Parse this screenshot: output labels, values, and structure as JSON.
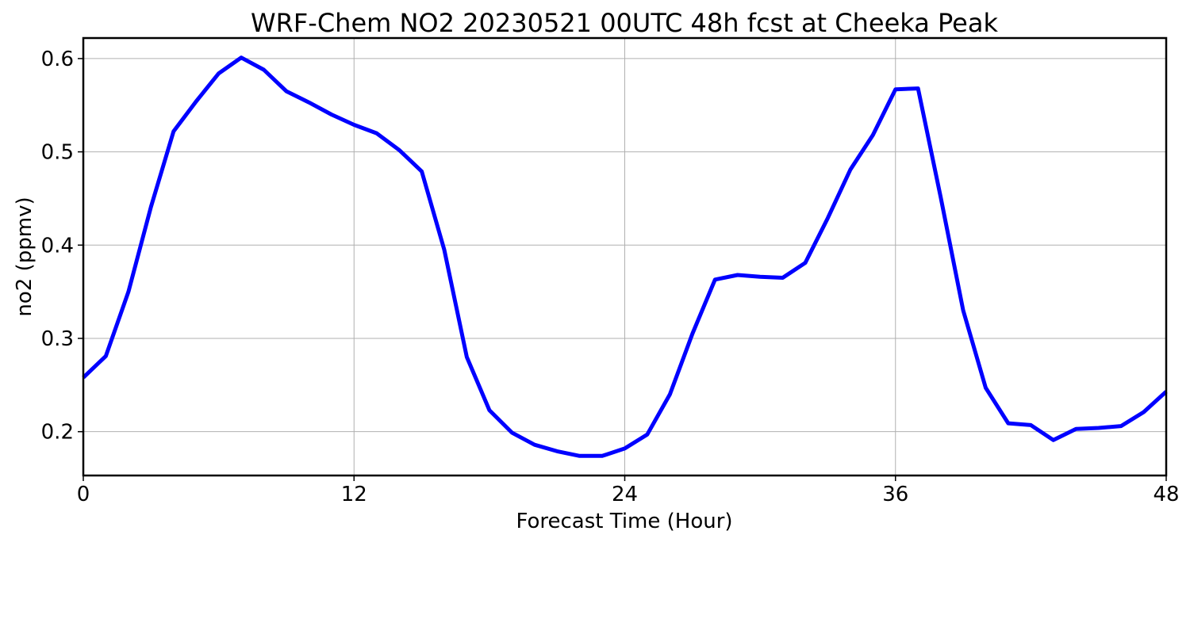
{
  "chart_data": {
    "type": "line",
    "title": "WRF-Chem NO2  20230521 00UTC 48h fcst at Cheeka Peak",
    "xlabel": "Forecast Time (Hour)",
    "ylabel": "no2  (ppmv)",
    "xlim": [
      0,
      48
    ],
    "ylim": [
      0.153,
      0.622
    ],
    "xticks": [
      0,
      12,
      24,
      36,
      48
    ],
    "yticks": [
      0.2,
      0.3,
      0.4,
      0.5,
      0.6
    ],
    "ytick_labels": [
      "0.2",
      "0.3",
      "0.4",
      "0.5",
      "0.6"
    ],
    "grid": true,
    "series_color": "#0000ff",
    "series": [
      {
        "x": [
          0,
          1,
          2,
          3,
          4,
          5,
          6,
          7,
          8,
          9,
          10,
          11,
          12,
          13,
          14,
          15,
          16,
          17,
          18,
          19,
          20,
          21,
          22,
          23,
          24,
          25,
          26,
          27,
          28,
          29,
          30,
          31,
          32,
          33,
          34,
          35,
          36,
          37,
          38,
          39,
          40,
          41,
          42,
          43,
          44,
          45,
          46,
          47,
          48
        ],
        "values": [
          0.258,
          0.281,
          0.35,
          0.441,
          0.522,
          0.554,
          0.584,
          0.601,
          0.588,
          0.565,
          0.553,
          0.54,
          0.529,
          0.52,
          0.502,
          0.479,
          0.395,
          0.28,
          0.223,
          0.199,
          0.186,
          0.179,
          0.174,
          0.174,
          0.182,
          0.197,
          0.24,
          0.305,
          0.363,
          0.368,
          0.366,
          0.365,
          0.381,
          0.429,
          0.481,
          0.518,
          0.567,
          0.568,
          0.452,
          0.33,
          0.247,
          0.209,
          0.207,
          0.191,
          0.203,
          0.204,
          0.206,
          0.221,
          0.243
        ]
      }
    ]
  }
}
